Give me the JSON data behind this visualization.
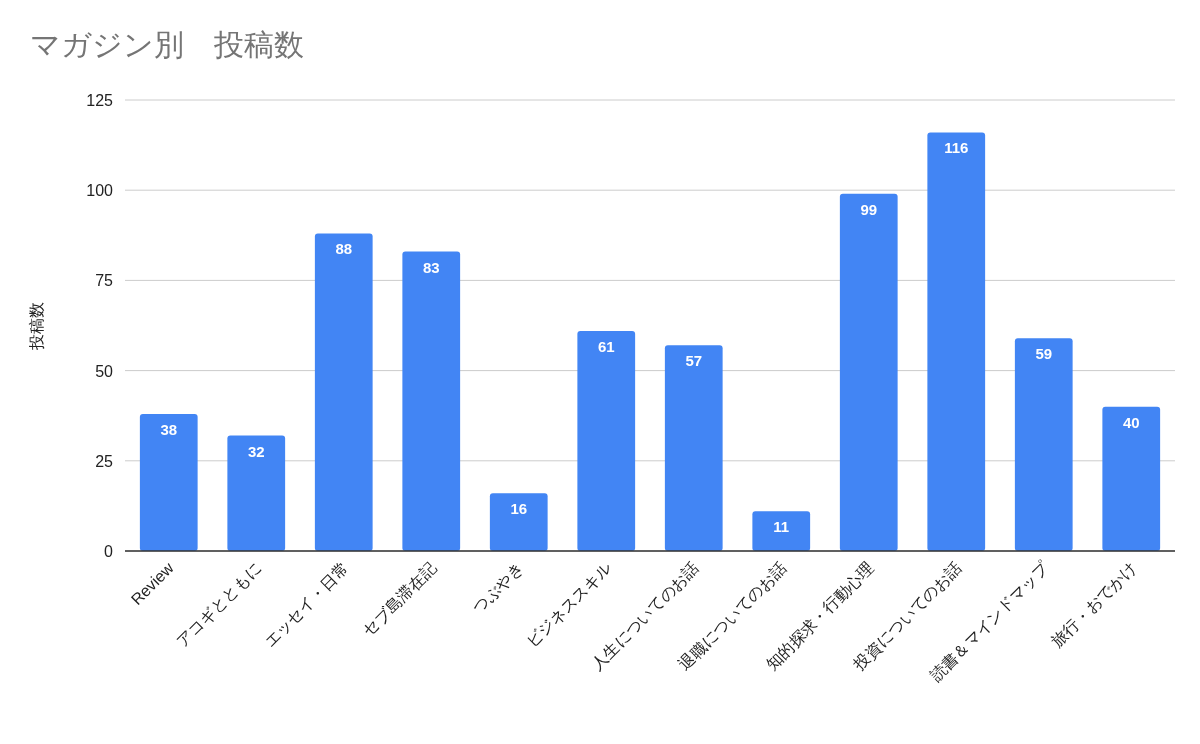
{
  "chart_data": {
    "type": "bar",
    "title": "マガジン別　投稿数",
    "ylabel": "投稿数",
    "categories": [
      "Review",
      "アコギとともに",
      "エッセイ・日常",
      "セブ島滞在記",
      "つぶやき",
      "ビジネススキル",
      "人生についてのお話",
      "退職についてのお話",
      "知的探求・行動心理",
      "投資についてのお話",
      "読書＆マインドマップ",
      "旅行・おでかけ"
    ],
    "values": [
      38,
      32,
      88,
      83,
      16,
      61,
      57,
      11,
      99,
      116,
      59,
      40
    ],
    "color": "#4285f4",
    "ylim": [
      0,
      125
    ],
    "yticks": [
      0,
      25,
      50,
      75,
      100,
      125
    ],
    "grid": "y",
    "data_labels": true
  }
}
